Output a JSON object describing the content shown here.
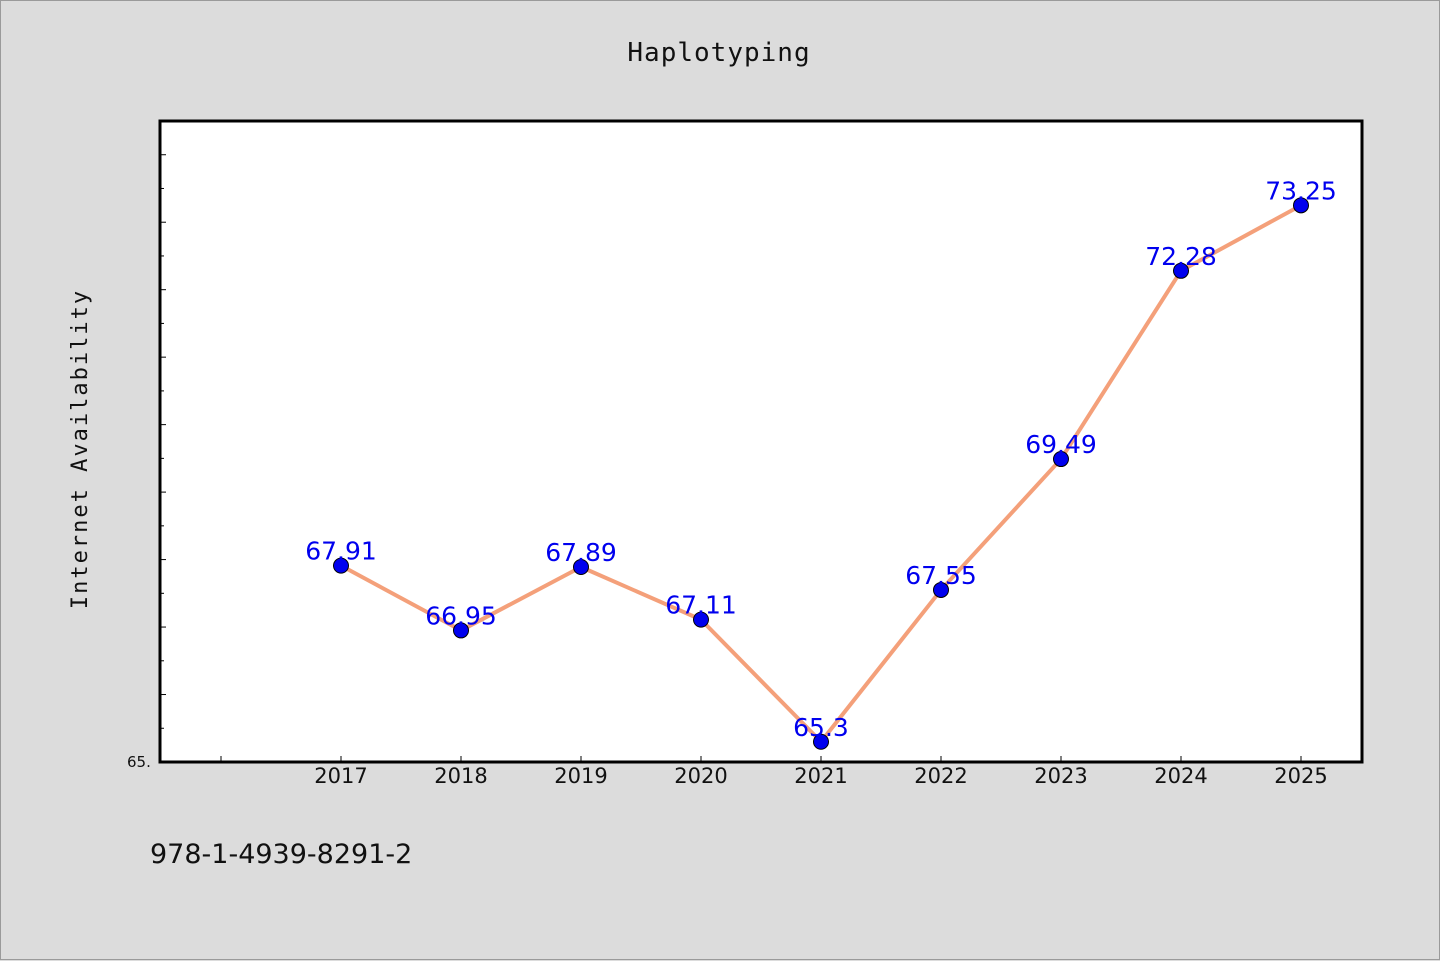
{
  "chart_data": {
    "type": "line",
    "title": "Haplotyping",
    "ylabel": "Internet Availability",
    "xlabel": "",
    "categories": [
      "2017",
      "2018",
      "2019",
      "2020",
      "2021",
      "2022",
      "2023",
      "2024",
      "2025"
    ],
    "series": [
      {
        "values": [
          67.91,
          66.95,
          67.89,
          67.11,
          65.3,
          67.55,
          69.49,
          72.28,
          73.25
        ],
        "labels": [
          "67.91",
          "66.95",
          "67.89",
          "67.11",
          "65.3",
          "67.55",
          "69.49",
          "72.28",
          "73.25"
        ],
        "line_color": "#f4a07a",
        "marker_color": "#0000ee",
        "label_color": "#0000ee"
      }
    ],
    "ylim": [
      65.0,
      74.5
    ],
    "y_tick_label": "65.",
    "grid": false,
    "legend": "none"
  },
  "footer": {
    "isbn": "978-1-4939-8291-2"
  },
  "colors": {
    "background": "#dcdcdc",
    "plot_area": "#ffffff",
    "axes": "#000000"
  }
}
